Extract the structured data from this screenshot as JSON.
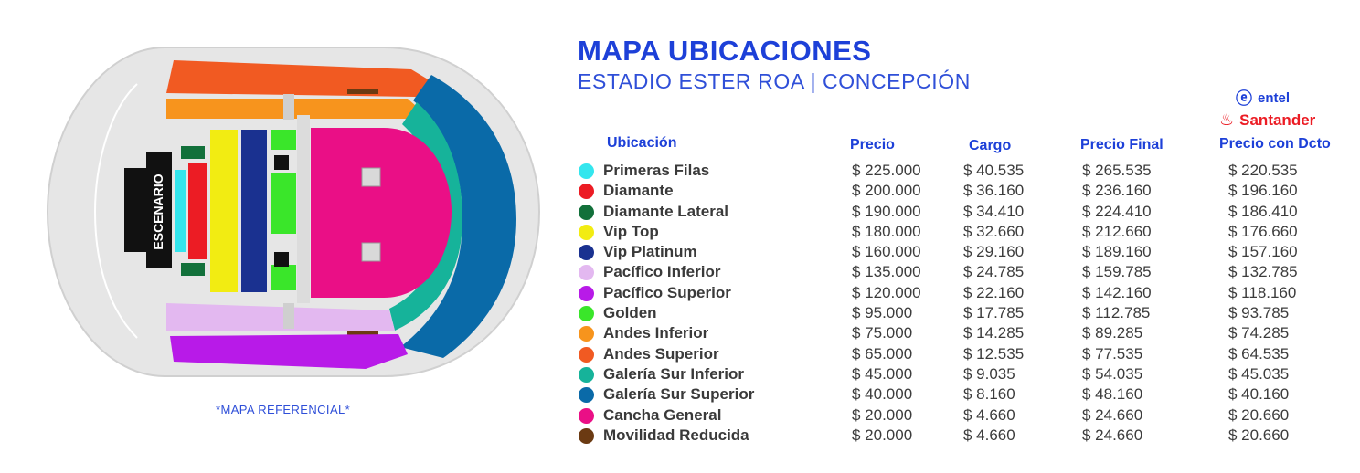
{
  "title": "MAPA UBICACIONES",
  "subtitle": "ESTADIO ESTER ROA | CONCEPCIÓN",
  "map_note": "*MAPA REFERENCIAL*",
  "stage_label": "ESCENARIO",
  "sponsors": {
    "entel": "entel",
    "santander": "Santander"
  },
  "headers": {
    "location": "Ubicación",
    "price": "Precio",
    "charge": "Cargo",
    "final_price": "Precio Final",
    "discount_price": "Precio con Dcto"
  },
  "rows": [
    {
      "name": "Primeras Filas",
      "color": "#34e6ee",
      "price": "$ 225.000",
      "charge": "$ 40.535",
      "final": "$ 265.535",
      "discount": "$ 220.535"
    },
    {
      "name": "Diamante",
      "color": "#ec1c24",
      "price": "$ 200.000",
      "charge": "$ 36.160",
      "final": "$ 236.160",
      "discount": "$ 196.160"
    },
    {
      "name": "Diamante Lateral",
      "color": "#12703a",
      "price": "$ 190.000",
      "charge": "$ 34.410",
      "final": "$ 224.410",
      "discount": "$ 186.410"
    },
    {
      "name": "Vip Top",
      "color": "#f2ec12",
      "price": "$ 180.000",
      "charge": "$ 32.660",
      "final": "$ 212.660",
      "discount": "$ 176.660"
    },
    {
      "name": "Vip Platinum",
      "color": "#1a3190",
      "price": "$ 160.000",
      "charge": "$ 29.160",
      "final": "$ 189.160",
      "discount": "$ 157.160"
    },
    {
      "name": "Pacífico Inferior",
      "color": "#e3b8f0",
      "price": "$ 135.000",
      "charge": "$ 24.785",
      "final": "$ 159.785",
      "discount": "$ 132.785"
    },
    {
      "name": "Pacífico Superior",
      "color": "#b81ae8",
      "price": "$ 120.000",
      "charge": "$ 22.160",
      "final": "$ 142.160",
      "discount": "$ 118.160"
    },
    {
      "name": "Golden",
      "color": "#3ae62a",
      "price": "$ 95.000",
      "charge": "$ 17.785",
      "final": "$ 112.785",
      "discount": "$ 93.785"
    },
    {
      "name": "Andes Inferior",
      "color": "#f7941d",
      "price": "$ 75.000",
      "charge": "$ 14.285",
      "final": "$ 89.285",
      "discount": "$ 74.285"
    },
    {
      "name": "Andes Superior",
      "color": "#f15a22",
      "price": "$ 65.000",
      "charge": "$ 12.535",
      "final": "$ 77.535",
      "discount": "$ 64.535"
    },
    {
      "name": "Galería Sur Inferior",
      "color": "#16b39a",
      "price": "$ 45.000",
      "charge": "$ 9.035",
      "final": "$ 54.035",
      "discount": "$ 45.035"
    },
    {
      "name": "Galería Sur Superior",
      "color": "#0a6aa8",
      "price": "$ 40.000",
      "charge": "$ 8.160",
      "final": "$ 48.160",
      "discount": "$ 40.160"
    },
    {
      "name": "Cancha General",
      "color": "#ea0f86",
      "price": "$ 20.000",
      "charge": "$ 4.660",
      "final": "$ 24.660",
      "discount": "$ 20.660"
    },
    {
      "name": "Movilidad Reducida",
      "color": "#6b3a12",
      "price": "$ 20.000",
      "charge": "$ 4.660",
      "final": "$ 24.660",
      "discount": "$ 20.660"
    }
  ]
}
